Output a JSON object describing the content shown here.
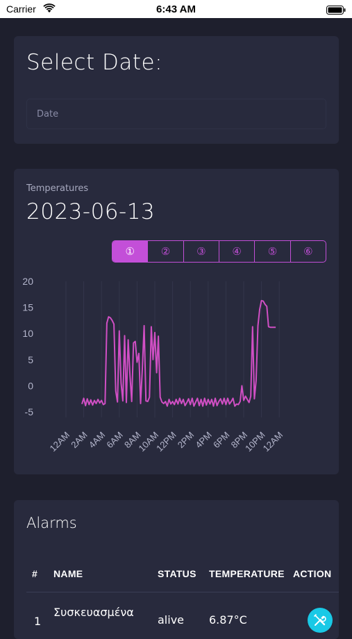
{
  "status_bar": {
    "carrier": "Carrier",
    "time": "6:43 AM"
  },
  "date_section": {
    "title": "Select Date:",
    "placeholder": "Date"
  },
  "temperatures": {
    "subtitle": "Temperatures",
    "date": "2023-06-13",
    "tabs": [
      "①",
      "②",
      "③",
      "④",
      "⑤",
      "⑥"
    ],
    "active_tab": 0
  },
  "chart_data": {
    "type": "line",
    "title": "",
    "xlabel": "",
    "ylabel": "",
    "ylim": [
      -5,
      20
    ],
    "y_ticks": [
      "20",
      "15",
      "10",
      "5",
      "0",
      "-5"
    ],
    "x_ticks": [
      "12AM",
      "2AM",
      "4AM",
      "6AM",
      "8AM",
      "10AM",
      "12PM",
      "2PM",
      "4PM",
      "6PM",
      "8PM",
      "10PM",
      "12AM"
    ],
    "x_unit": "hours",
    "grid": "vertical",
    "legend": "none",
    "color": "#d04fc4",
    "series": [
      {
        "x": [
          1.8,
          2.0,
          2.2,
          2.4,
          2.6,
          2.8,
          3.0,
          3.2,
          3.4,
          3.6,
          3.8,
          4.0,
          4.2,
          4.4,
          4.6,
          4.8,
          5.0,
          5.2,
          5.4,
          5.6,
          5.8,
          6.0,
          6.2,
          6.4,
          6.6,
          6.8,
          7.0,
          7.2,
          7.4,
          7.6,
          7.8,
          8.0,
          8.2,
          8.4,
          8.6,
          8.8,
          9.0,
          9.2,
          9.4,
          9.6,
          9.8,
          10.0,
          10.2,
          10.4,
          10.6,
          10.8,
          11.0,
          11.2,
          11.4,
          11.6,
          11.8,
          12.0,
          12.2,
          12.4,
          12.6,
          12.8,
          13.0,
          13.2,
          13.4,
          13.6,
          13.8,
          14.0,
          14.2,
          14.4,
          14.6,
          14.8,
          15.0,
          15.2,
          15.4,
          15.6,
          15.8,
          16.0,
          16.2,
          16.4,
          16.6,
          16.8,
          17.0,
          17.2,
          17.4,
          17.6,
          17.8,
          18.0,
          18.2,
          18.4,
          18.6,
          18.8,
          19.0,
          19.2,
          19.4,
          19.6,
          19.8,
          20.0,
          20.2,
          20.4,
          20.6,
          20.8,
          21.0,
          21.2,
          21.4,
          21.6,
          21.8,
          22.0,
          22.2,
          22.4,
          22.6,
          22.8,
          23.0,
          23.2,
          23.4,
          23.6
        ],
        "y": [
          -3.5,
          -2.4,
          -3.8,
          -2.5,
          -3.6,
          -2.7,
          -3.7,
          -2.8,
          -3.4,
          -2.6,
          -3.3,
          -2.8,
          -3.6,
          -3.4,
          12.0,
          13.2,
          13.0,
          12.5,
          11.8,
          -1.0,
          -3.1,
          10.5,
          0.5,
          -2.9,
          9.6,
          -3.2,
          8.8,
          2.0,
          -3.0,
          8.2,
          8.5,
          4.5,
          6.2,
          -3.4,
          3.5,
          11.5,
          -2.9,
          -3.0,
          -2.2,
          11.3,
          5.0,
          10.2,
          2.5,
          9.5,
          -2.2,
          -3.1,
          -3.4,
          -3.0,
          -3.9,
          -2.6,
          -3.5,
          -3.0,
          -3.6,
          -2.6,
          -3.5,
          -2.4,
          -3.4,
          -2.6,
          -3.8,
          -3.2,
          -2.5,
          -3.6,
          -2.4,
          -3.9,
          -3.1,
          -2.4,
          -3.8,
          -2.6,
          -3.9,
          -2.4,
          -3.7,
          -2.6,
          -3.5,
          -2.6,
          -3.9,
          -2.4,
          -3.8,
          -3.0,
          -2.5,
          -3.5,
          -2.4,
          -3.6,
          -2.4,
          -3.5,
          -3.0,
          -2.4,
          -3.9,
          -3.5,
          -3.6,
          -3.0,
          0.0,
          -2.8,
          -2.0,
          -2.6,
          -3.2,
          -2.0,
          11.3,
          -2.5,
          1.0,
          11.5,
          14.6,
          16.3,
          16.2,
          15.6,
          15.2,
          11.3,
          11.2,
          11.2,
          11.2,
          11.2
        ],
        "trim": 103
      }
    ]
  },
  "alarms": {
    "title": "Alarms",
    "headers": [
      "#",
      "NAME",
      "STATUS",
      "TEMPERATURE",
      "ACTION"
    ],
    "rows": [
      {
        "num": "1",
        "name": "Συσκευασμένα",
        "status": "alive",
        "temperature": "6.87°C"
      }
    ],
    "action_icon": "tools-icon",
    "action_color": "#19c9e6"
  }
}
